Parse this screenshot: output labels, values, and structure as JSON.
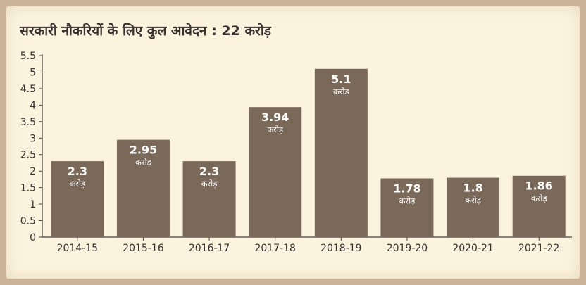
{
  "colors": {
    "bar": "#7a6859",
    "axis": "#4a403c",
    "background": "#fbf3de",
    "frame": "#cbb39a"
  },
  "chart_data": {
    "type": "bar",
    "title": "सरकारी नौकरियों के लिए कुल आवेदन : 22 करोड़",
    "xlabel": "",
    "ylabel": "",
    "categories": [
      "2014-15",
      "2015-16",
      "2016-17",
      "2017-18",
      "2018-19",
      "2019-20",
      "2020-21",
      "2021-22"
    ],
    "values": [
      2.3,
      2.95,
      2.3,
      3.94,
      5.1,
      1.78,
      1.8,
      1.86
    ],
    "data_labels": [
      "2.3",
      "2.95",
      "2.3",
      "3.94",
      "5.1",
      "1.78",
      "1.8",
      "1.86"
    ],
    "unit_label": "करोड़",
    "ylim": [
      0,
      5.5
    ],
    "yticks": [
      "0",
      "0.5",
      "1",
      "1.5",
      "2",
      "2.5",
      "3",
      "3.5",
      "4",
      "4.5",
      "5",
      "5.5"
    ],
    "grid": false,
    "legend": "none"
  }
}
